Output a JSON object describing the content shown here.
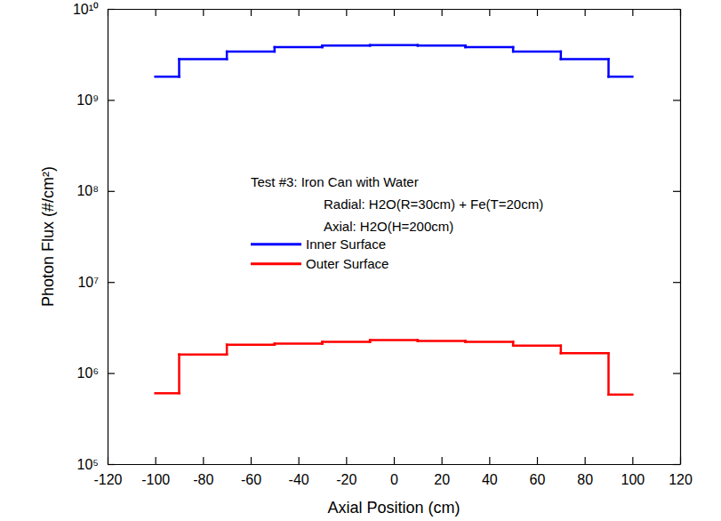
{
  "chart_data": {
    "type": "step",
    "x_label": "Axial Position (cm)",
    "y_label": "Photon Flux (#/cm²)",
    "annotations": [
      "Test #3: Iron Can with Water",
      "Radial: H2O(R=30cm) + Fe(T=20cm)",
      "Axial: H2O(H=200cm)"
    ],
    "bins": [
      -100,
      -90,
      -70,
      -50,
      -30,
      -10,
      10,
      30,
      50,
      70,
      90,
      100
    ],
    "series": [
      {
        "name": "Inner Surface",
        "color": "#0000ff",
        "values": [
          1800000000.0,
          2800000000.0,
          3400000000.0,
          3800000000.0,
          3950000000.0,
          4000000000.0,
          3950000000.0,
          3800000000.0,
          3400000000.0,
          2800000000.0,
          1800000000.0
        ]
      },
      {
        "name": "Outer Surface",
        "color": "#ff0000",
        "values": [
          600000.0,
          1600000.0,
          2050000.0,
          2100000.0,
          2200000.0,
          2300000.0,
          2250000.0,
          2200000.0,
          2000000.0,
          1650000.0,
          580000.0
        ]
      }
    ],
    "xlim": [
      -120,
      120
    ],
    "xticks": [
      -120,
      -100,
      -80,
      -60,
      -40,
      -20,
      0,
      20,
      40,
      60,
      80,
      100,
      120
    ],
    "ylim": [
      100000,
      10000000000
    ],
    "yticks": [
      {
        "value": 100000,
        "label": "10⁵"
      },
      {
        "value": 1000000,
        "label": "10⁶"
      },
      {
        "value": 10000000,
        "label": "10⁷"
      },
      {
        "value": 100000000,
        "label": "10⁸"
      },
      {
        "value": 1000000000,
        "label": "10⁹"
      },
      {
        "value": 10000000000,
        "label": "10¹⁰"
      }
    ],
    "log": "y",
    "grid": false,
    "legend": "center"
  }
}
